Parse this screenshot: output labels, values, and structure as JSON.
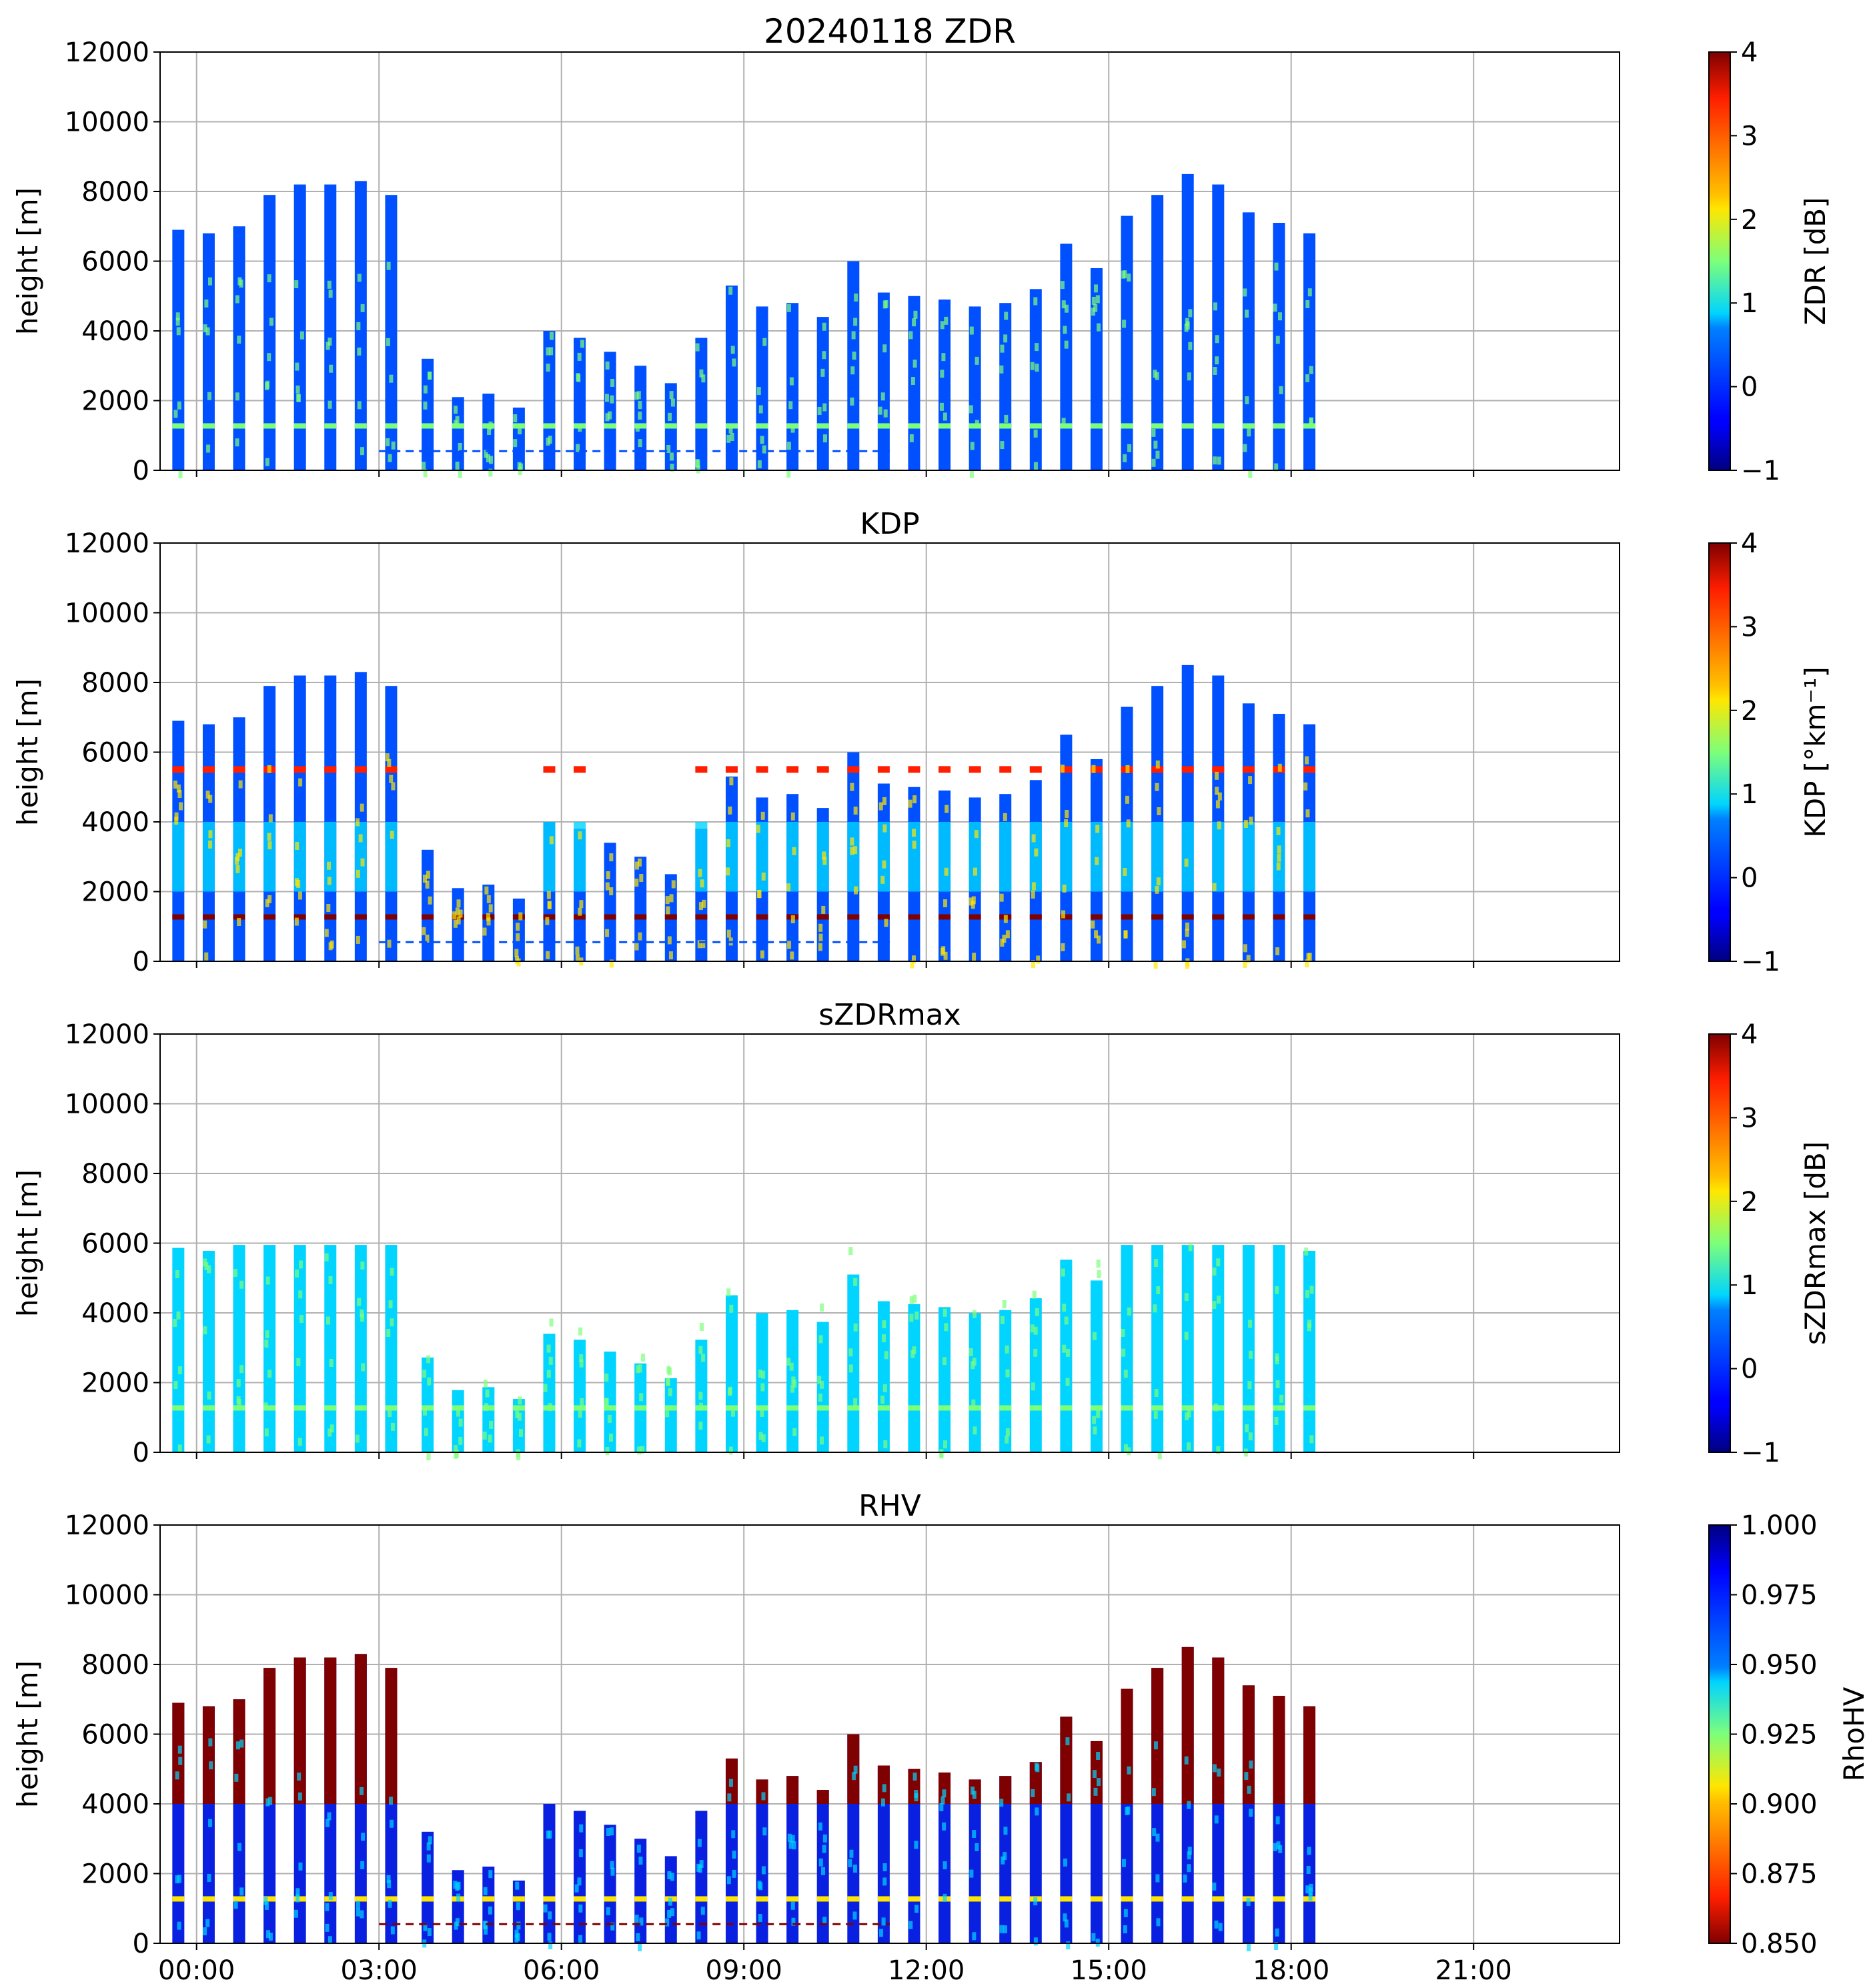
{
  "figure_title": "20240118 ZDR",
  "chart_data": [
    {
      "type": "heatmap",
      "title": "20240118 ZDR",
      "ylabel": "height [m]",
      "xlabel": "",
      "ylim": [
        0,
        12000
      ],
      "yticks": [
        "0",
        "2000",
        "4000",
        "6000",
        "8000",
        "10000",
        "12000"
      ],
      "xlim_hours": [
        -0.6,
        23.4
      ],
      "xticks": [
        "00:00",
        "03:00",
        "06:00",
        "09:00",
        "12:00",
        "15:00",
        "18:00",
        "21:00"
      ],
      "grid": true,
      "colorbar": {
        "label": "ZDR [dB]",
        "range": [
          -1,
          4
        ],
        "ticks": [
          "−1",
          "0",
          "1",
          "2",
          "3",
          "4"
        ],
        "cmap": "jet"
      },
      "scan_times_hours": [
        -0.3,
        0.2,
        0.7,
        1.2,
        1.7,
        2.2,
        2.7,
        3.2,
        3.8,
        4.3,
        4.8,
        5.3,
        5.8,
        6.3,
        6.8,
        7.3,
        7.8,
        8.3,
        8.8,
        9.3,
        9.8,
        10.3,
        10.8,
        11.3,
        11.8,
        12.3,
        12.8,
        13.3,
        13.8,
        14.3,
        14.8,
        15.3,
        15.8,
        16.3,
        16.8,
        17.3,
        17.8,
        18.3
      ]
    },
    {
      "type": "heatmap",
      "title": "KDP",
      "ylabel": "height [m]",
      "xlabel": "",
      "ylim": [
        0,
        12000
      ],
      "yticks": [
        "0",
        "2000",
        "4000",
        "6000",
        "8000",
        "10000",
        "12000"
      ],
      "xlim_hours": [
        -0.6,
        23.4
      ],
      "xticks": [
        "00:00",
        "03:00",
        "06:00",
        "09:00",
        "12:00",
        "15:00",
        "18:00",
        "21:00"
      ],
      "grid": true,
      "colorbar": {
        "label": "KDP [°km⁻¹]",
        "range": [
          -1,
          4
        ],
        "ticks": [
          "−1",
          "0",
          "1",
          "2",
          "3",
          "4"
        ],
        "cmap": "jet"
      }
    },
    {
      "type": "heatmap",
      "title": "sZDRmax",
      "ylabel": "height [m]",
      "xlabel": "",
      "ylim": [
        0,
        12000
      ],
      "yticks": [
        "0",
        "2000",
        "4000",
        "6000",
        "8000",
        "10000",
        "12000"
      ],
      "xlim_hours": [
        -0.6,
        23.4
      ],
      "xticks": [
        "00:00",
        "03:00",
        "06:00",
        "09:00",
        "12:00",
        "15:00",
        "18:00",
        "21:00"
      ],
      "grid": true,
      "colorbar": {
        "label": "sZDRmax [dB]",
        "range": [
          -1,
          4
        ],
        "ticks": [
          "−1",
          "0",
          "1",
          "2",
          "3",
          "4"
        ],
        "cmap": "jet"
      }
    },
    {
      "type": "heatmap",
      "title": "RHV",
      "ylabel": "height [m]",
      "xlabel": "",
      "ylim": [
        0,
        12000
      ],
      "yticks": [
        "0",
        "2000",
        "4000",
        "6000",
        "8000",
        "10000",
        "12000"
      ],
      "xlim_hours": [
        -0.6,
        23.4
      ],
      "xticks": [
        "00:00",
        "03:00",
        "06:00",
        "09:00",
        "12:00",
        "15:00",
        "18:00",
        "21:00"
      ],
      "grid": true,
      "colorbar": {
        "label": "RhoHV",
        "range": [
          0.85,
          1.0
        ],
        "ticks": [
          "0.850",
          "0.875",
          "0.900",
          "0.925",
          "0.950",
          "0.975",
          "1.000"
        ],
        "cmap": "jet_r"
      }
    }
  ],
  "echo_tops_m": [
    6900,
    6800,
    7000,
    7900,
    8200,
    8200,
    8300,
    7900,
    3200,
    2100,
    2200,
    1800,
    4000,
    3800,
    3400,
    3000,
    2500,
    3800,
    5300,
    4700,
    4800,
    4400,
    6000,
    5100,
    5000,
    4900,
    4700,
    4800,
    5200,
    6500,
    5800,
    7300,
    7900,
    8500,
    8200,
    7400,
    7100,
    6800
  ],
  "colors": {
    "jet_low": "#00007f",
    "jet_blue": "#0050ff",
    "jet_cyan": "#00d4ff",
    "jet_green": "#7dff7a",
    "jet_yellow": "#ffe600",
    "jet_red": "#ff1e00",
    "jet_high": "#7f0000",
    "grid": "#b0b0b0"
  }
}
